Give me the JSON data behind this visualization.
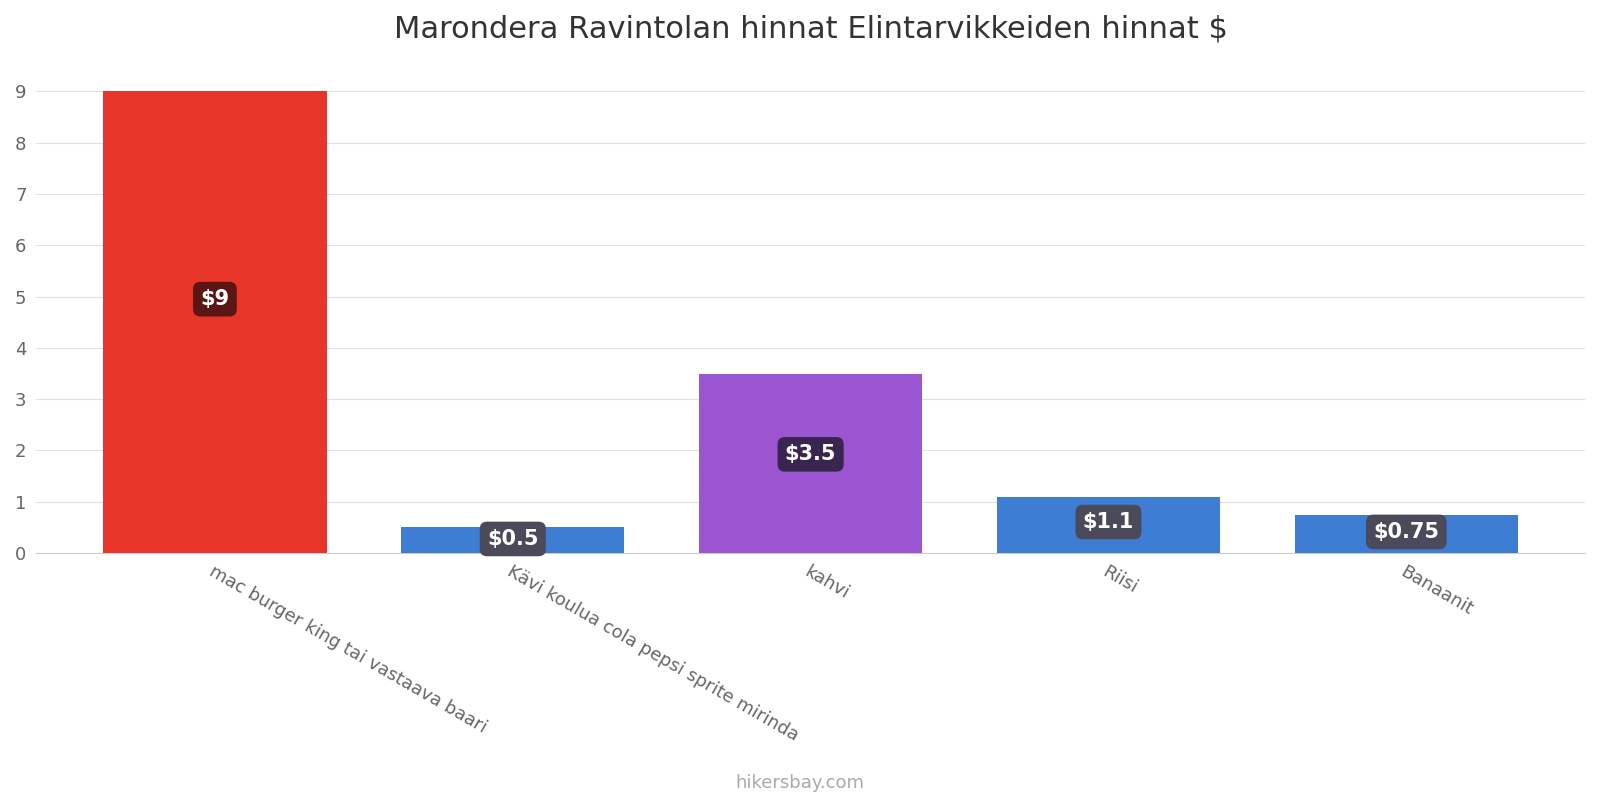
{
  "title": "Marondera Ravintolan hinnat Elintarvikkeiden hinnat $",
  "categories": [
    "mac burger king tai vastaava baari",
    "Kävi koulua cola pepsi sprite mirinda",
    "kahvi",
    "Riisi",
    "Banaanit"
  ],
  "values": [
    9,
    0.5,
    3.5,
    1.1,
    0.75
  ],
  "bar_colors": [
    "#e8352a",
    "#3d7ed4",
    "#9b55d0",
    "#3d7ed4",
    "#3d7ed4"
  ],
  "label_texts": [
    "$9",
    "$0.5",
    "$3.5",
    "$1.1",
    "$0.75"
  ],
  "label_bg_colors": [
    "#5a1515",
    "#4a4a5a",
    "#3a2550",
    "#4a4a5a",
    "#4a4a5a"
  ],
  "ylim": [
    0,
    9.5
  ],
  "yticks": [
    0,
    1,
    2,
    3,
    4,
    5,
    6,
    7,
    8,
    9
  ],
  "footer_text": "hikersbay.com",
  "title_fontsize": 22,
  "label_fontsize": 15,
  "tick_fontsize": 13,
  "footer_fontsize": 13,
  "background_color": "#ffffff",
  "grid_color": "#e0e0e0",
  "bar_width": 0.75
}
